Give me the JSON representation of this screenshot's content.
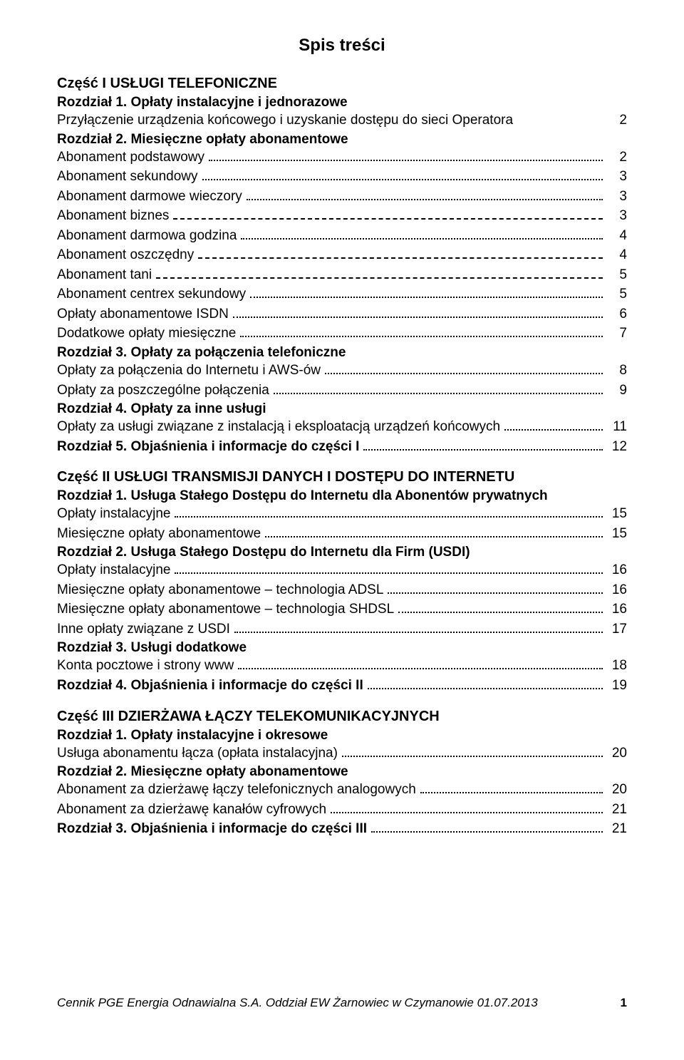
{
  "title": "Spis treści",
  "parts": [
    {
      "heading": "Część I USŁUGI TELEFONICZNE",
      "rows": [
        {
          "type": "chapter",
          "label": "Rozdział 1. Opłaty instalacyjne i jednorazowe"
        },
        {
          "type": "item",
          "label": "Przyłączenie urządzenia końcowego i uzyskanie dostępu do sieci Operatora",
          "page": "2",
          "leader": "none"
        },
        {
          "type": "chapter",
          "label": "Rozdział 2. Miesięczne opłaty abonamentowe"
        },
        {
          "type": "item",
          "label": "Abonament podstawowy",
          "page": "2"
        },
        {
          "type": "item",
          "label": "Abonament sekundowy",
          "page": "3"
        },
        {
          "type": "item",
          "label": "Abonament darmowe wieczory",
          "page": "3"
        },
        {
          "type": "item",
          "label": "Abonament biznes",
          "page": "3",
          "leader": "dashed"
        },
        {
          "type": "item",
          "label": "Abonament darmowa godzina",
          "page": "4"
        },
        {
          "type": "item",
          "label": "Abonament oszczędny",
          "page": "4",
          "leader": "dashed"
        },
        {
          "type": "item",
          "label": "Abonament tani",
          "page": "5",
          "leader": "dashed"
        },
        {
          "type": "item",
          "label": "Abonament centrex sekundowy",
          "page": "5"
        },
        {
          "type": "item",
          "label": "Opłaty abonamentowe ISDN",
          "page": "6"
        },
        {
          "type": "item",
          "label": "Dodatkowe opłaty miesięczne",
          "page": "7"
        },
        {
          "type": "chapter",
          "label": "Rozdział 3. Opłaty za połączenia telefoniczne"
        },
        {
          "type": "item",
          "label": "Opłaty za połączenia do Internetu i AWS-ów",
          "page": "8"
        },
        {
          "type": "item",
          "label": "Opłaty za poszczególne połączenia",
          "page": "9"
        },
        {
          "type": "chapter",
          "label": "Rozdział 4. Opłaty za inne usługi"
        },
        {
          "type": "item",
          "label": "Opłaty za usługi związane z instalacją i eksploatacją urządzeń końcowych",
          "page": "11"
        },
        {
          "type": "item-inline-head",
          "head": "Rozdział 5. Objaśnienia i informacje do części I",
          "page": "12"
        }
      ]
    },
    {
      "heading": "Część II USŁUGI TRANSMISJI DANYCH I DOSTĘPU DO INTERNETU",
      "rows": [
        {
          "type": "chapter",
          "label": "Rozdział 1. Usługa Stałego Dostępu do Internetu dla Abonentów prywatnych"
        },
        {
          "type": "item",
          "label": "Opłaty instalacyjne",
          "page": "15"
        },
        {
          "type": "item",
          "label": "Miesięczne opłaty abonamentowe",
          "page": "15"
        },
        {
          "type": "chapter",
          "label": "Rozdział 2. Usługa Stałego Dostępu do Internetu dla Firm (USDI)"
        },
        {
          "type": "item",
          "label": "Opłaty instalacyjne",
          "page": "16"
        },
        {
          "type": "item",
          "label": "Miesięczne opłaty abonamentowe – technologia ADSL",
          "page": "16"
        },
        {
          "type": "item",
          "label": "Miesięczne opłaty abonamentowe – technologia SHDSL",
          "page": "16"
        },
        {
          "type": "item",
          "label": "Inne opłaty związane z USDI",
          "page": "17"
        },
        {
          "type": "chapter",
          "label": "Rozdział 3. Usługi dodatkowe"
        },
        {
          "type": "item",
          "label": "Konta pocztowe i strony www",
          "page": "18"
        },
        {
          "type": "item-inline-head",
          "head": "Rozdział 4. Objaśnienia i informacje do części II",
          "page": "19"
        }
      ]
    },
    {
      "heading": "Część III DZIERŻAWA ŁĄCZY TELEKOMUNIKACYJNYCH",
      "rows": [
        {
          "type": "chapter",
          "label": "Rozdział 1. Opłaty instalacyjne i okresowe"
        },
        {
          "type": "item",
          "label": "Usługa abonamentu łącza (opłata instalacyjna)",
          "page": "20"
        },
        {
          "type": "chapter",
          "label": "Rozdział 2. Miesięczne opłaty abonamentowe"
        },
        {
          "type": "item",
          "label": "Abonament za dzierżawę łączy telefonicznych analogowych",
          "page": "20"
        },
        {
          "type": "item",
          "label": "Abonament za dzierżawę kanałów cyfrowych",
          "page": "21"
        },
        {
          "type": "item-inline-head",
          "head": "Rozdział 3. Objaśnienia i informacje do części III",
          "page": "21"
        }
      ]
    }
  ],
  "footer": {
    "text": "Cennik PGE Energia Odnawialna S.A. Oddział EW Żarnowiec w Czymanowie 01.07.2013",
    "page": "1"
  },
  "colors": {
    "text": "#000000",
    "background": "#ffffff",
    "leader": "#000000"
  },
  "typography": {
    "title_fontsize": 24,
    "part_head_fontsize": 20,
    "body_fontsize": 19,
    "footer_fontsize": 17,
    "body_font": "Comic Sans MS",
    "part_font": "Arial"
  }
}
